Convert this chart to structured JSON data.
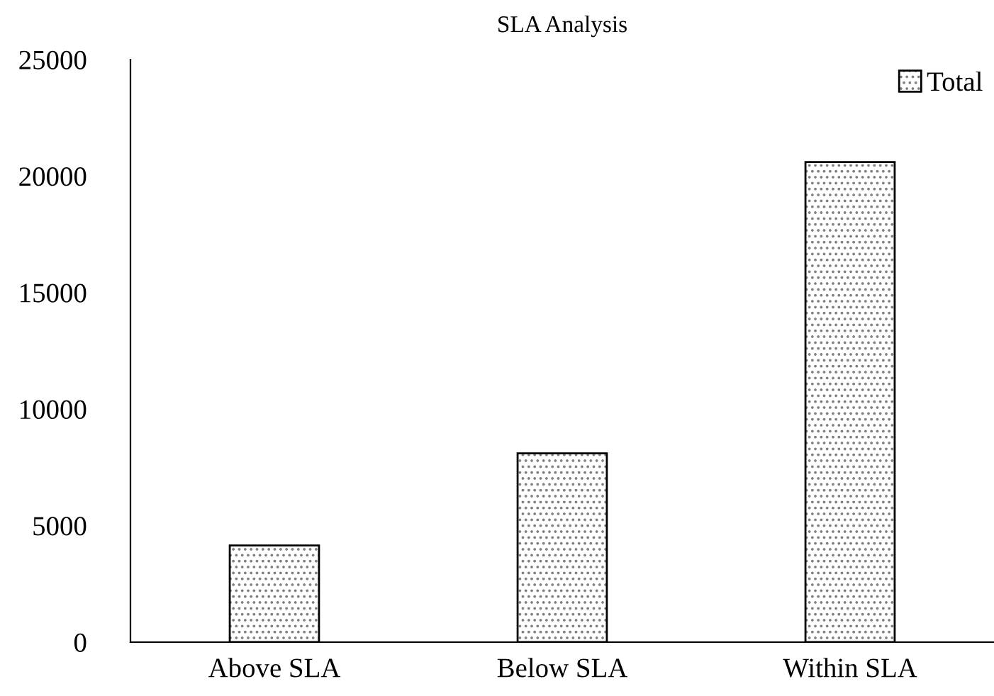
{
  "chart_data": {
    "type": "bar",
    "title": "SLA Analysis",
    "categories": [
      "Above SLA",
      "Below SLA",
      "Within SLA"
    ],
    "series": [
      {
        "name": "Total",
        "color": "#000000",
        "values": [
          4150,
          8100,
          20600
        ]
      }
    ],
    "ylim": [
      0,
      25000
    ],
    "yticks": [
      0,
      5000,
      10000,
      15000,
      20000,
      25000
    ],
    "grid": false,
    "legend": "top right"
  }
}
